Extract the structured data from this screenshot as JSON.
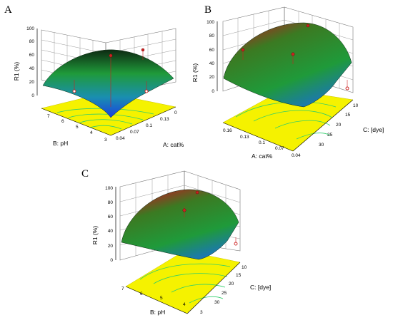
{
  "colors": {
    "contour_floor": "#f5f200",
    "contour_line": "#2fcf6a",
    "surface_low": "#1a3fe0",
    "surface_mid": "#1f9a3a",
    "surface_high": "#b22222",
    "design_point": "#cc2222"
  },
  "chart_data": [
    {
      "panel": "A",
      "type": "surface",
      "zlabel": "R1 (%)",
      "zticks": [
        "0",
        "20",
        "40",
        "60",
        "80",
        "100"
      ],
      "zlim": [
        0,
        100
      ],
      "x": {
        "label": "A: cat%",
        "ticks": [
          "0.04",
          "0.07",
          "0.1",
          "0.13",
          "0"
        ]
      },
      "y": {
        "label": "B: pH",
        "ticks": [
          "7",
          "6",
          "5",
          "4",
          "3"
        ]
      },
      "surface_peak_approx": 80,
      "design_points": [
        {
          "label": "",
          "z": 80
        },
        {
          "label": "",
          "z": 75
        },
        {
          "label": "",
          "z": 40
        },
        {
          "label": "",
          "z": 37
        }
      ]
    },
    {
      "panel": "B",
      "type": "surface",
      "zlabel": "R1 (%)",
      "zticks": [
        "0",
        "20",
        "40",
        "60",
        "80",
        "100"
      ],
      "zlim": [
        0,
        100
      ],
      "x": {
        "label": "A: cat%",
        "ticks": [
          "0.16",
          "0.13",
          "0.1",
          "0.07",
          "0.04"
        ]
      },
      "y": {
        "label": "C: [dye]",
        "ticks": [
          "10",
          "15",
          "20",
          "25",
          "30"
        ]
      },
      "surface_peak_approx": 95,
      "design_points": [
        {
          "label": "",
          "z": 95
        },
        {
          "label": "",
          "z": 83
        },
        {
          "label": "",
          "z": 70
        },
        {
          "label": "",
          "z": 35
        }
      ]
    },
    {
      "panel": "C",
      "type": "surface",
      "zlabel": "R1 (%)",
      "zticks": [
        "0",
        "20",
        "40",
        "60",
        "80",
        "100"
      ],
      "zlim": [
        0,
        100
      ],
      "x": {
        "label": "B: pH",
        "ticks": [
          "7",
          "6",
          "5",
          "4",
          "3"
        ]
      },
      "y": {
        "label": "C: [dye]",
        "ticks": [
          "10",
          "15",
          "20",
          "25",
          "30"
        ]
      },
      "surface_peak_approx": 93,
      "design_points": [
        {
          "label": "",
          "z": 97
        },
        {
          "label": "",
          "z": 82
        },
        {
          "label": "",
          "z": 42
        }
      ]
    }
  ]
}
